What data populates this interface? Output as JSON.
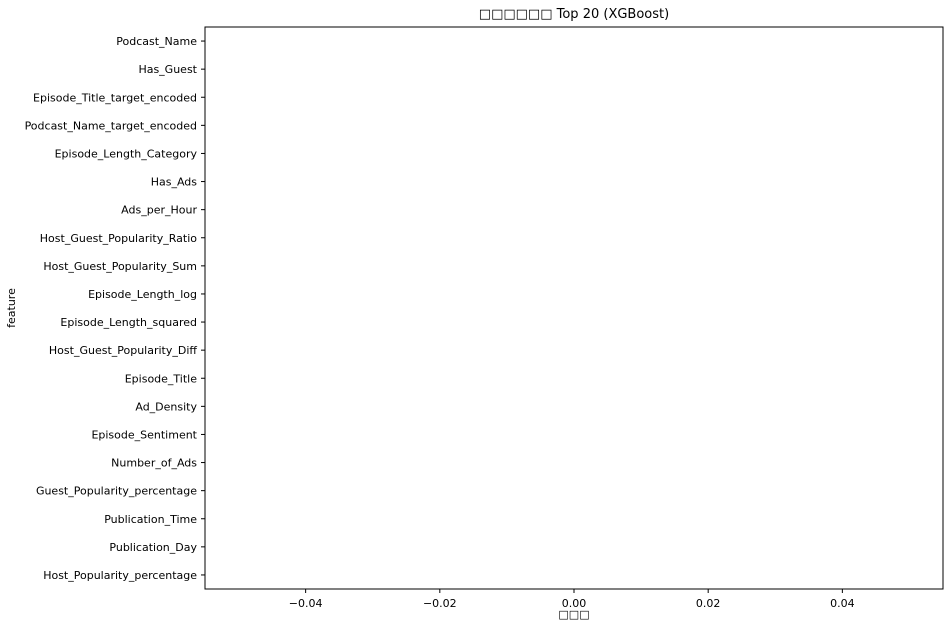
{
  "chart_data": {
    "type": "bar",
    "orientation": "horizontal",
    "title": "□□□□□□ Top 20 (XGBoost)",
    "xlabel": "□□□",
    "ylabel": "feature",
    "categories": [
      "Podcast_Name",
      "Has_Guest",
      "Episode_Title_target_encoded",
      "Podcast_Name_target_encoded",
      "Episode_Length_Category",
      "Has_Ads",
      "Ads_per_Hour",
      "Host_Guest_Popularity_Ratio",
      "Host_Guest_Popularity_Sum",
      "Episode_Length_log",
      "Episode_Length_squared",
      "Host_Guest_Popularity_Diff",
      "Episode_Title",
      "Ad_Density",
      "Episode_Sentiment",
      "Number_of_Ads",
      "Guest_Popularity_percentage",
      "Publication_Time",
      "Publication_Day",
      "Host_Popularity_percentage"
    ],
    "values": [
      0,
      0,
      0,
      0,
      0,
      0,
      0,
      0,
      0,
      0,
      0,
      0,
      0,
      0,
      0,
      0,
      0,
      0,
      0,
      0
    ],
    "xlim": [
      -0.055,
      0.055
    ],
    "xticks": [
      -0.04,
      -0.02,
      0.0,
      0.02,
      0.04
    ],
    "xtick_labels": [
      "−0.04",
      "−0.02",
      "0.00",
      "0.02",
      "0.04"
    ],
    "grid": false,
    "bar_color": "#1f77b4"
  }
}
